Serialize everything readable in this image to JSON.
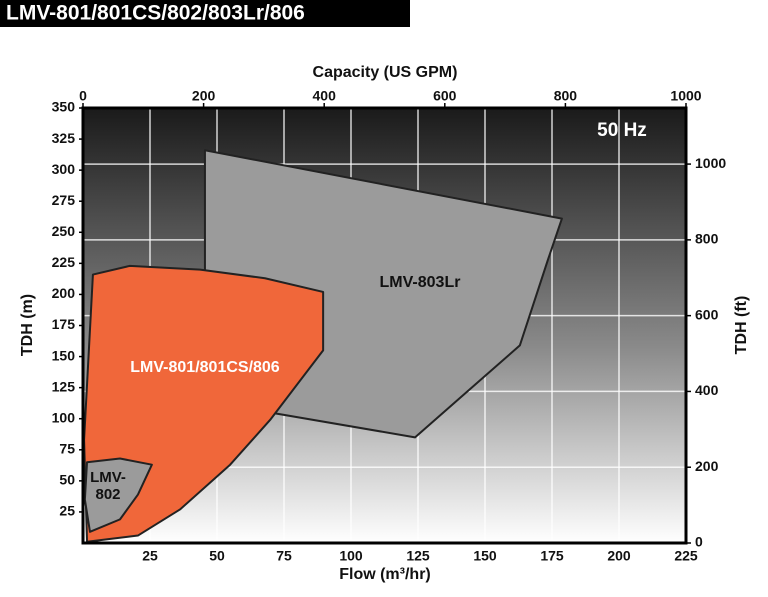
{
  "chart_data": {
    "type": "region",
    "title": "LMV-801/801CS/802/803Lr/806",
    "annotation": "50 Hz",
    "x_label": "Flow (m³/hr)",
    "x2_label": "Capacity (US GPM)",
    "y_label": "TDH (m)",
    "y2_label": "TDH (ft)",
    "xlim": [
      0,
      225
    ],
    "xticks": [
      25,
      50,
      75,
      100,
      125,
      150,
      175,
      200,
      225
    ],
    "x2lim": [
      0,
      1000
    ],
    "x2ticks": [
      0,
      200,
      400,
      600,
      800,
      1000
    ],
    "ylim": [
      0,
      350
    ],
    "yticks": [
      25,
      50,
      75,
      100,
      125,
      150,
      175,
      200,
      225,
      250,
      275,
      300,
      325,
      350
    ],
    "y2lim": [
      0,
      1148
    ],
    "y2ticks": [
      0,
      200,
      400,
      600,
      800,
      1000
    ],
    "grid": true,
    "series": [
      {
        "name": "LMV-803Lr",
        "color": "#9b9b9b",
        "x": [
          45.5,
          178.7,
          173.5,
          163,
          123.9,
          69.8,
          45.5
        ],
        "values": [
          316,
          261,
          228,
          159,
          85,
          105,
          220
        ]
      },
      {
        "name": "LMV-801/801CS/806",
        "color": "#f0673a",
        "x": [
          3.7,
          17.5,
          43.7,
          67.9,
          89.6,
          89.6,
          69.8,
          54.9,
          36.2,
          20.5,
          1.5,
          0.4
        ],
        "values": [
          216,
          223,
          220,
          213,
          202,
          155,
          99,
          63,
          27,
          6,
          1,
          83
        ]
      },
      {
        "name": "LMV-802",
        "label_lines": [
          "LMV-",
          "802"
        ],
        "color": "#9b9b9b",
        "x": [
          1.5,
          13.8,
          25.7,
          20.5,
          13.8,
          2.6,
          0.7
        ],
        "values": [
          65,
          68,
          63,
          39,
          19,
          9,
          35
        ]
      }
    ]
  }
}
